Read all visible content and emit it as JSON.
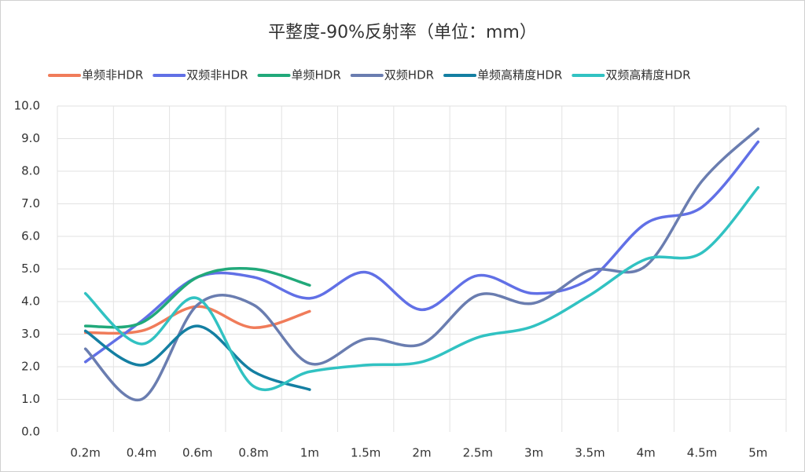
{
  "chart_data": {
    "type": "line",
    "title": "平整度-90%反射率（单位：mm）",
    "categories": [
      "0.2m",
      "0.4m",
      "0.6m",
      "0.8m",
      "1m",
      "1.5m",
      "2m",
      "2.5m",
      "3m",
      "3.5m",
      "4m",
      "4.5m",
      "5m"
    ],
    "series": [
      {
        "name": "单频非HDR",
        "color": "#f07c5a",
        "values": [
          3.05,
          3.1,
          3.85,
          3.2,
          3.7,
          null,
          null,
          null,
          null,
          null,
          null,
          null,
          null
        ]
      },
      {
        "name": "双频非HDR",
        "color": "#6170e6",
        "values": [
          2.15,
          3.4,
          4.75,
          4.75,
          4.1,
          4.9,
          3.75,
          4.8,
          4.25,
          4.7,
          6.4,
          6.9,
          8.9
        ]
      },
      {
        "name": "单频HDR",
        "color": "#21a97a",
        "values": [
          3.25,
          3.35,
          4.75,
          5.0,
          4.5,
          null,
          null,
          null,
          null,
          null,
          null,
          null,
          null
        ]
      },
      {
        "name": "双频HDR",
        "color": "#6a7db0",
        "values": [
          2.55,
          1.0,
          3.9,
          3.9,
          2.1,
          2.85,
          2.7,
          4.2,
          3.95,
          4.95,
          5.1,
          7.7,
          9.3
        ]
      },
      {
        "name": "单频高精度HDR",
        "color": "#147fa2",
        "values": [
          3.1,
          2.05,
          3.25,
          1.85,
          1.3,
          null,
          null,
          null,
          null,
          null,
          null,
          null,
          null
        ]
      },
      {
        "name": "双频高精度HDR",
        "color": "#31c2c2",
        "values": [
          4.25,
          2.7,
          4.1,
          1.4,
          1.85,
          2.05,
          2.15,
          2.9,
          3.25,
          4.2,
          5.3,
          5.5,
          7.5
        ]
      }
    ],
    "ylim": [
      0,
      10
    ],
    "yticks": [
      {
        "value": 0,
        "label": "0.0"
      },
      {
        "value": 1,
        "label": "1.0"
      },
      {
        "value": 2,
        "label": "2.0"
      },
      {
        "value": 3,
        "label": "3.0"
      },
      {
        "value": 4,
        "label": "4.0"
      },
      {
        "value": 5,
        "label": "5.0"
      },
      {
        "value": 6,
        "label": "6.0"
      },
      {
        "value": 7,
        "label": "7.0"
      },
      {
        "value": 8,
        "label": "8.0"
      },
      {
        "value": 9,
        "label": "9.0"
      },
      {
        "value": 10,
        "label": "10.0"
      }
    ],
    "grid": true,
    "legend": "top",
    "smooth": true
  }
}
